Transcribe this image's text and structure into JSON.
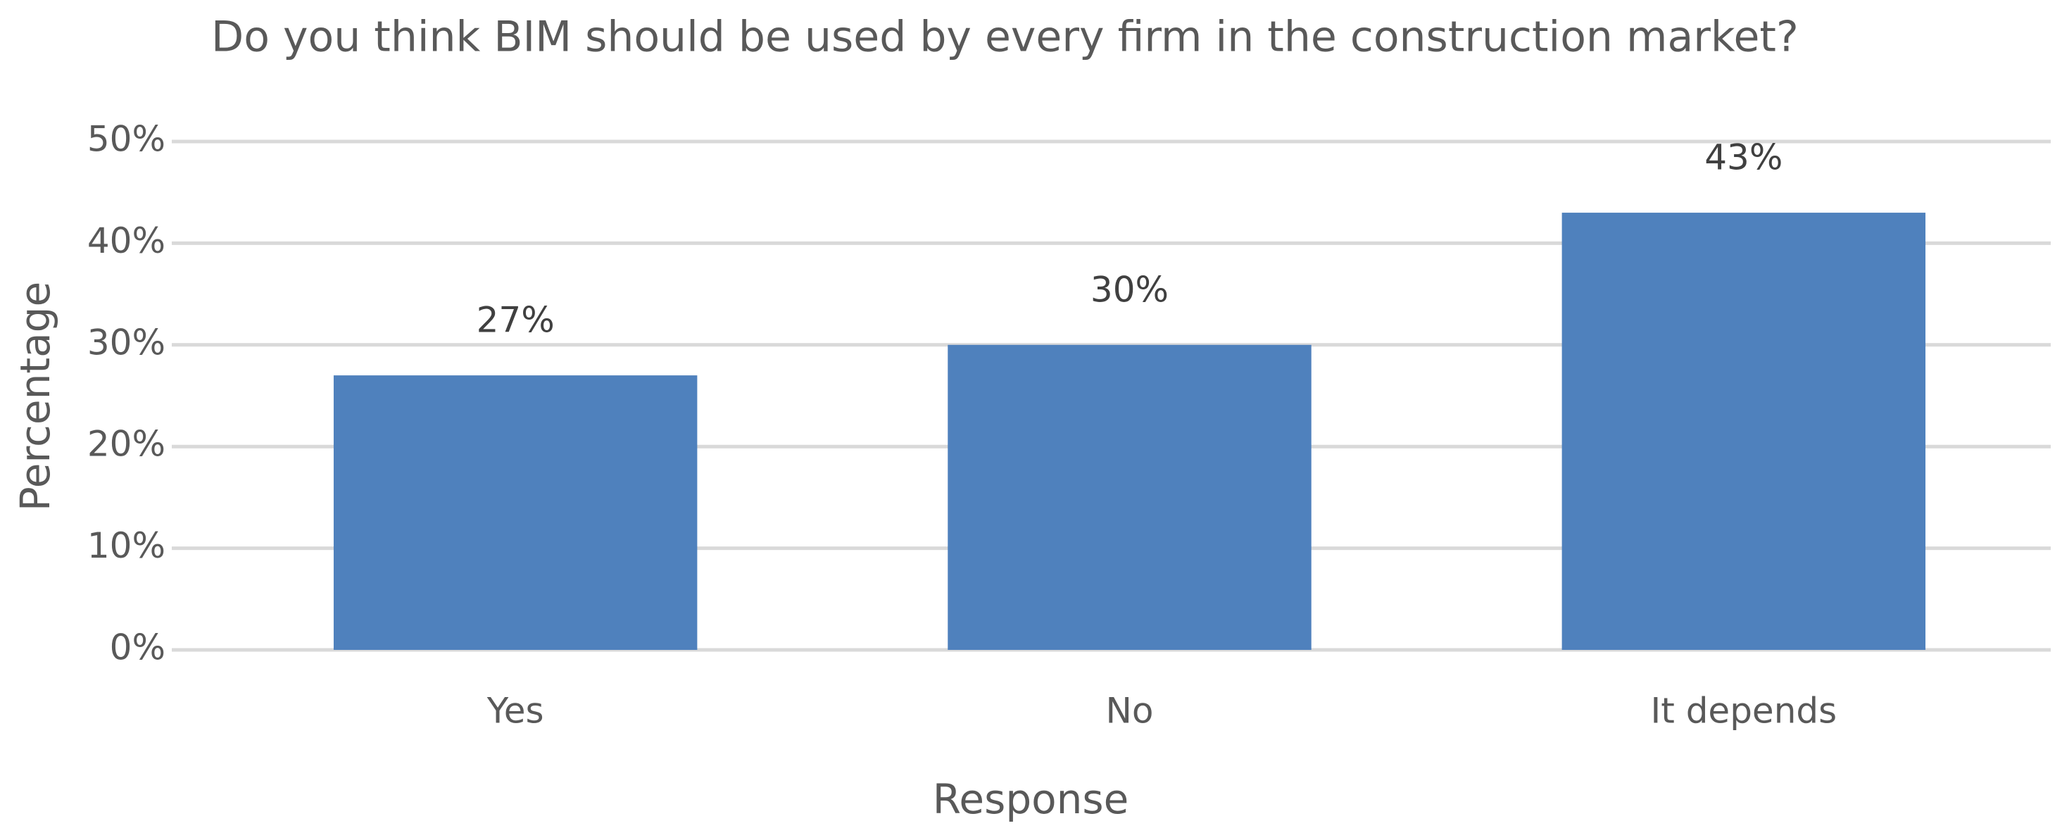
{
  "chart_data": {
    "type": "bar",
    "title": "Do you think BIM should be used by every firm in the construction market?",
    "x_label": "Response",
    "y_label": "Percentage",
    "categories": [
      "Yes",
      "No",
      "It depends"
    ],
    "values": [
      27,
      30,
      43
    ],
    "value_labels": [
      "27%",
      "30%",
      "43%"
    ],
    "color": "#4f81bd",
    "ylim": [
      0,
      50
    ],
    "yticks": [
      {
        "value": 0,
        "label": "0%"
      },
      {
        "value": 10,
        "label": "10%"
      },
      {
        "value": 20,
        "label": "20%"
      },
      {
        "value": 30,
        "label": "30%"
      },
      {
        "value": 40,
        "label": "40%"
      },
      {
        "value": 50,
        "label": "50%"
      }
    ],
    "grid": true
  }
}
